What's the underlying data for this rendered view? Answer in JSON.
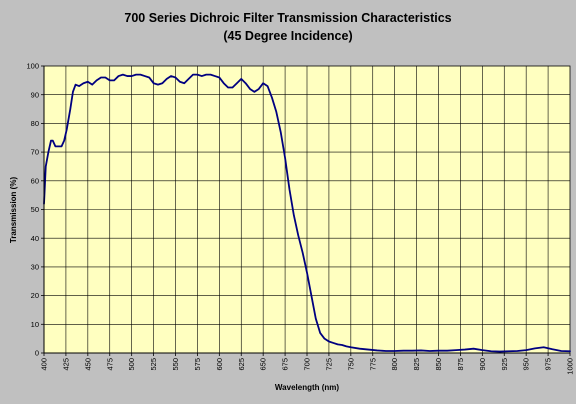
{
  "chart_data": {
    "type": "line",
    "title": "700 Series Dichroic Filter Transmission Characteristics",
    "subtitle": "(45 Degree Incidence)",
    "xlabel": "Wavelength (nm)",
    "ylabel": "Transmission (%)",
    "xlim": [
      400,
      1000
    ],
    "ylim": [
      0,
      100
    ],
    "x_ticks": [
      400,
      425,
      450,
      475,
      500,
      525,
      550,
      575,
      600,
      625,
      650,
      675,
      700,
      725,
      750,
      775,
      800,
      825,
      850,
      875,
      900,
      925,
      950,
      975,
      1000
    ],
    "y_ticks": [
      0,
      10,
      20,
      30,
      40,
      50,
      60,
      70,
      80,
      90,
      100
    ],
    "grid": true,
    "legend": "none",
    "colors": {
      "line": "#000080",
      "plot_background": "#ffffc0",
      "chart_background": "#c0c0c0"
    },
    "series": [
      {
        "x": [
          400,
          402,
          405,
          408,
          410,
          413,
          416,
          420,
          423,
          426,
          430,
          433,
          436,
          440,
          445,
          450,
          455,
          460,
          465,
          470,
          475,
          480,
          485,
          490,
          495,
          500,
          505,
          510,
          515,
          520,
          525,
          530,
          535,
          540,
          545,
          550,
          555,
          560,
          565,
          570,
          575,
          580,
          585,
          590,
          595,
          600,
          605,
          610,
          615,
          620,
          625,
          630,
          635,
          640,
          645,
          650,
          655,
          660,
          665,
          670,
          675,
          680,
          685,
          690,
          695,
          700,
          705,
          710,
          715,
          720,
          725,
          730,
          735,
          740,
          745,
          750,
          760,
          770,
          780,
          790,
          800,
          810,
          820,
          830,
          840,
          850,
          860,
          870,
          880,
          890,
          900,
          910,
          920,
          930,
          940,
          950,
          960,
          970,
          980,
          990,
          1000
        ],
        "y": [
          52,
          65,
          70,
          74,
          74,
          72,
          72,
          72,
          74,
          78,
          85,
          91,
          93.5,
          93,
          94,
          94.5,
          93.5,
          95,
          96,
          96,
          95,
          95,
          96.5,
          97,
          96.5,
          96.5,
          97,
          97,
          96.5,
          96,
          94,
          93.5,
          94,
          95.5,
          96.5,
          96,
          94.5,
          94,
          95.5,
          97,
          97,
          96.5,
          97,
          97,
          96.5,
          96,
          94,
          92.5,
          92.5,
          94,
          95.5,
          94,
          92,
          91,
          92,
          94,
          93,
          89,
          84,
          77,
          68,
          57,
          48,
          41,
          35,
          28,
          20,
          12,
          7,
          5,
          4,
          3.5,
          3,
          2.8,
          2.3,
          2,
          1.5,
          1.2,
          0.9,
          0.7,
          0.7,
          0.8,
          0.8,
          0.9,
          0.7,
          0.8,
          0.8,
          1,
          1.2,
          1.5,
          1,
          0.6,
          0.5,
          0.6,
          0.7,
          1,
          1.6,
          2,
          1.3,
          0.7,
          0.6
        ]
      }
    ]
  }
}
